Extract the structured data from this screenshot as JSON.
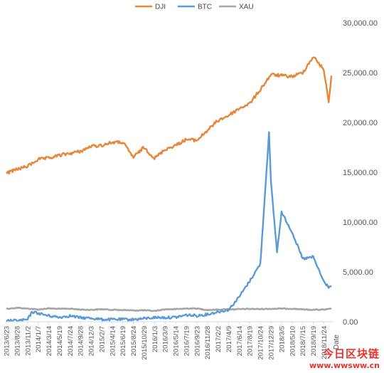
{
  "chart_data": {
    "type": "line",
    "title": "",
    "xlabel": "Date",
    "ylabel": "",
    "ylim": [
      0,
      30000
    ],
    "y_ticks": [
      "0.00",
      "5,000.00",
      "10,000.00",
      "15,000.00",
      "20,000.00",
      "25,000.00",
      "30,000.00"
    ],
    "x_ticks": [
      "2013/6/23",
      "2013/8/28",
      "2013/11/2",
      "2014/1/7",
      "2014/3/14",
      "2014/5/19",
      "2014/7/24",
      "2014/9/28",
      "2014/12/3",
      "2015/2/7",
      "2015/4/14",
      "2015/6/19",
      "2015/8/24",
      "2015/10/29",
      "2016/1/3",
      "2016/3/9",
      "2016/5/14",
      "2016/7/19",
      "2016/9/23",
      "2016/11/28",
      "2017/2/2",
      "2017/4/9",
      "2017/6/14",
      "2017/8/19",
      "2017/10/24",
      "2017/12/29",
      "2018/3/5",
      "2018/5/10",
      "2018/7/15",
      "2018/9/19",
      "2018/11/24"
    ],
    "legend_position": "top",
    "grid": false,
    "series": [
      {
        "name": "DJI",
        "color": "#e5873a",
        "x": [
          "2013/6/23",
          "2013/8/28",
          "2013/11/2",
          "2014/1/7",
          "2014/3/14",
          "2014/5/19",
          "2014/7/24",
          "2014/9/28",
          "2014/12/3",
          "2015/2/7",
          "2015/4/14",
          "2015/6/19",
          "2015/8/24",
          "2015/10/29",
          "2016/1/3",
          "2016/3/9",
          "2016/5/14",
          "2016/7/19",
          "2016/9/23",
          "2016/11/28",
          "2017/2/2",
          "2017/4/9",
          "2017/6/14",
          "2017/8/19",
          "2017/10/24",
          "2017/12/29",
          "2018/3/5",
          "2018/5/10",
          "2018/7/15",
          "2018/9/19",
          "2018/11/24",
          "2018/12/24",
          "2019/1/10"
        ],
        "values": [
          14900,
          15300,
          15600,
          16300,
          16400,
          16700,
          16900,
          17100,
          17600,
          17700,
          18000,
          18000,
          16500,
          17500,
          16400,
          17300,
          17700,
          18300,
          18200,
          19200,
          20200,
          20700,
          21400,
          21900,
          23300,
          24800,
          24700,
          24600,
          25000,
          26600,
          25300,
          22000,
          24700
        ]
      },
      {
        "name": "BTC",
        "color": "#5b9bd5",
        "x": [
          "2013/6/23",
          "2013/8/28",
          "2013/11/2",
          "2013/11/30",
          "2014/1/7",
          "2014/3/14",
          "2014/5/19",
          "2014/7/24",
          "2014/9/28",
          "2014/12/3",
          "2015/2/7",
          "2015/4/14",
          "2015/6/19",
          "2015/8/24",
          "2015/10/29",
          "2016/1/3",
          "2016/3/9",
          "2016/5/14",
          "2016/7/19",
          "2016/9/23",
          "2016/11/28",
          "2017/2/2",
          "2017/4/9",
          "2017/6/14",
          "2017/8/19",
          "2017/10/24",
          "2017/12/17",
          "2017/12/29",
          "2018/2/5",
          "2018/3/5",
          "2018/5/10",
          "2018/7/15",
          "2018/9/19",
          "2018/11/24",
          "2018/12/24",
          "2019/1/10"
        ],
        "values": [
          100,
          120,
          200,
          1000,
          850,
          600,
          450,
          600,
          400,
          370,
          230,
          230,
          240,
          230,
          320,
          430,
          420,
          450,
          680,
          610,
          740,
          1000,
          1200,
          2500,
          4100,
          5800,
          19000,
          14000,
          7000,
          11000,
          9000,
          6300,
          6500,
          4000,
          3500,
          3600
        ]
      },
      {
        "name": "XAU",
        "color": "#a6a6a6",
        "x": [
          "2013/6/23",
          "2013/8/28",
          "2013/11/2",
          "2014/1/7",
          "2014/3/14",
          "2014/5/19",
          "2014/7/24",
          "2014/9/28",
          "2014/12/3",
          "2015/2/7",
          "2015/4/14",
          "2015/6/19",
          "2015/8/24",
          "2015/10/29",
          "2016/1/3",
          "2016/3/9",
          "2016/5/14",
          "2016/7/19",
          "2016/9/23",
          "2016/11/28",
          "2017/2/2",
          "2017/4/9",
          "2017/6/14",
          "2017/8/19",
          "2017/10/24",
          "2017/12/29",
          "2018/3/5",
          "2018/5/10",
          "2018/7/15",
          "2018/9/19",
          "2018/11/24",
          "2019/1/10"
        ],
        "values": [
          1300,
          1400,
          1320,
          1230,
          1340,
          1290,
          1310,
          1220,
          1200,
          1250,
          1200,
          1180,
          1130,
          1150,
          1080,
          1250,
          1260,
          1330,
          1330,
          1180,
          1220,
          1250,
          1260,
          1290,
          1270,
          1300,
          1320,
          1310,
          1240,
          1200,
          1220,
          1290
        ]
      }
    ]
  },
  "watermark": {
    "main": "今日区块链",
    "url": "www.wwsww.cn"
  }
}
